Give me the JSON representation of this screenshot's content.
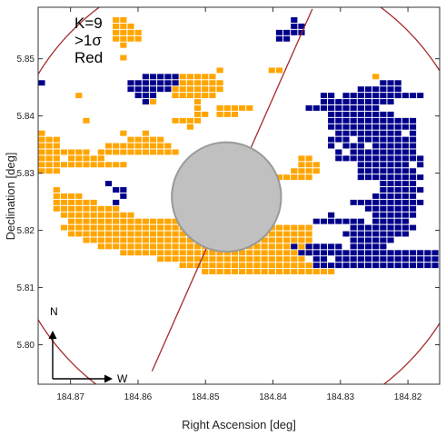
{
  "chart_data": {
    "type": "heatmap",
    "xlabel": "Right Ascension [deg]",
    "ylabel": "Declination [deg]",
    "xlim": [
      184.8748,
      184.8153
    ],
    "ylim": [
      5.7931,
      5.859
    ],
    "x_ticks": [
      {
        "value": 184.87,
        "label": "184.87"
      },
      {
        "value": 184.86,
        "label": "184.86"
      },
      {
        "value": 184.85,
        "label": "184.85"
      },
      {
        "value": 184.84,
        "label": "184.84"
      },
      {
        "value": 184.83,
        "label": "184.83"
      },
      {
        "value": 184.82,
        "label": "184.82"
      }
    ],
    "y_ticks": [
      {
        "value": 5.8,
        "label": "5.80"
      },
      {
        "value": 5.81,
        "label": "5.81"
      },
      {
        "value": 5.82,
        "label": "5.82"
      },
      {
        "value": 5.83,
        "label": "5.83"
      },
      {
        "value": 5.84,
        "label": "5.84"
      },
      {
        "value": 5.85,
        "label": "5.85"
      }
    ],
    "annotations": [
      "K=9",
      ">1σ",
      "Red"
    ],
    "compass": {
      "north": "N",
      "west": "W"
    },
    "cell_size_deg": 0.0011,
    "grid_origin": {
      "ra": 184.87475,
      "dec": 5.85835
    },
    "series": [
      {
        "color": "#ffa500",
        "rows": [
          "......................................................",
          "..........##..........................................",
          "..........###.........................................",
          "..........####........................................",
          "..........####........................................",
          "...........#..........................................",
          "......................................................",
          "...........#..........................................",
          "......................................................",
          "........................#......##.....................",
          "...................#####.....................#........",
          "..................#######.............................",
          "..................#######.............................",
          ".....#............######..............................",
          "...............#.....#................................",
          ".....................#..#####.........................",
          ".....................##.###...........................",
          "......#...........####................................",
          "....................#.................................",
          "#..........#..#.......................................",
          "###.........#####.....................................",
          "###......#########....................................",
          "#######.###########...................................",
          "###.#####..........................##.................",
          "############.......................###................",
          "###.....................#.........####................",
          "......................#.........#####.................",
          "........................#######.......................",
          "..#.....................#######.......................",
          "..####................#########.......................",
          "..######.................######.......................",
          "..#########..........###.#######......................",
          "...##########......########...........................",
          "....###############.##########........................",
          "...##################################.................",
          "....####################.############.................",
          "......###############################.................",
          "........#############################.................",
          "...........##########################.................",
          "................####################..................",
          "...................##################.................",
          "......................##################..............",
          "..................................................."
        ]
      },
      {
        "color": "#00008b",
        "rows": [
          "......................................................",
          "..................................#...................",
          "..................................##..................",
          "................................####..................",
          "................................##....................",
          "......................................................",
          "......................................................",
          "......................................................",
          "......................................................",
          "......................................................",
          "..............#####...................................",
          "#...........#######...........................###.....",
          "............######.........................######.....",
          ".............###......................##.###########..",
          "..............#.......................##########......",
          "....................................##########........",
          ".......................................#########......",
          ".......................................############...",
          ".......................................############...",
          "........................................#########.#...",
          ".......................................###.########...",
          ".......................................#.###.######...",
          "........................................#.#########...",
          "........................................############..",
          "...........................................#######.#..",
          "...........................................########...",
          "...........................................#########..",
          ".........#....................................#####...",
          "..........##..................................######..",
          "...........#.................................######...",
          "..........#...............................##########..",
          "............................................#######...",
          ".......................................#.....######...",
          ".....................................#######.#####....",
          "..........................................#########...",
          ".........................................#########....",
          "..........................................######......",
          "..................................#.#####.#####.......",
          "...................................###################",
          ".....................................##.##############",
          ".....................................#################",
          "......................................................",
          "......................................................"
        ]
      }
    ],
    "circle": {
      "center_ra": 184.84489,
      "center_dec": 5.82584,
      "radius_deg": 0.035,
      "color": "#a52a2a"
    },
    "mask": {
      "center_ra": 184.84689,
      "center_dec": 5.82584,
      "radius_deg": 0.0081,
      "fill": "#c0c0c0",
      "stroke": "#999999"
    },
    "slit_line": {
      "from": {
        "ra": 184.85792,
        "dec": 5.79538
      },
      "to": {
        "ra": 184.83417,
        "dec": 5.8587
      },
      "color": "#a52a2a"
    }
  }
}
